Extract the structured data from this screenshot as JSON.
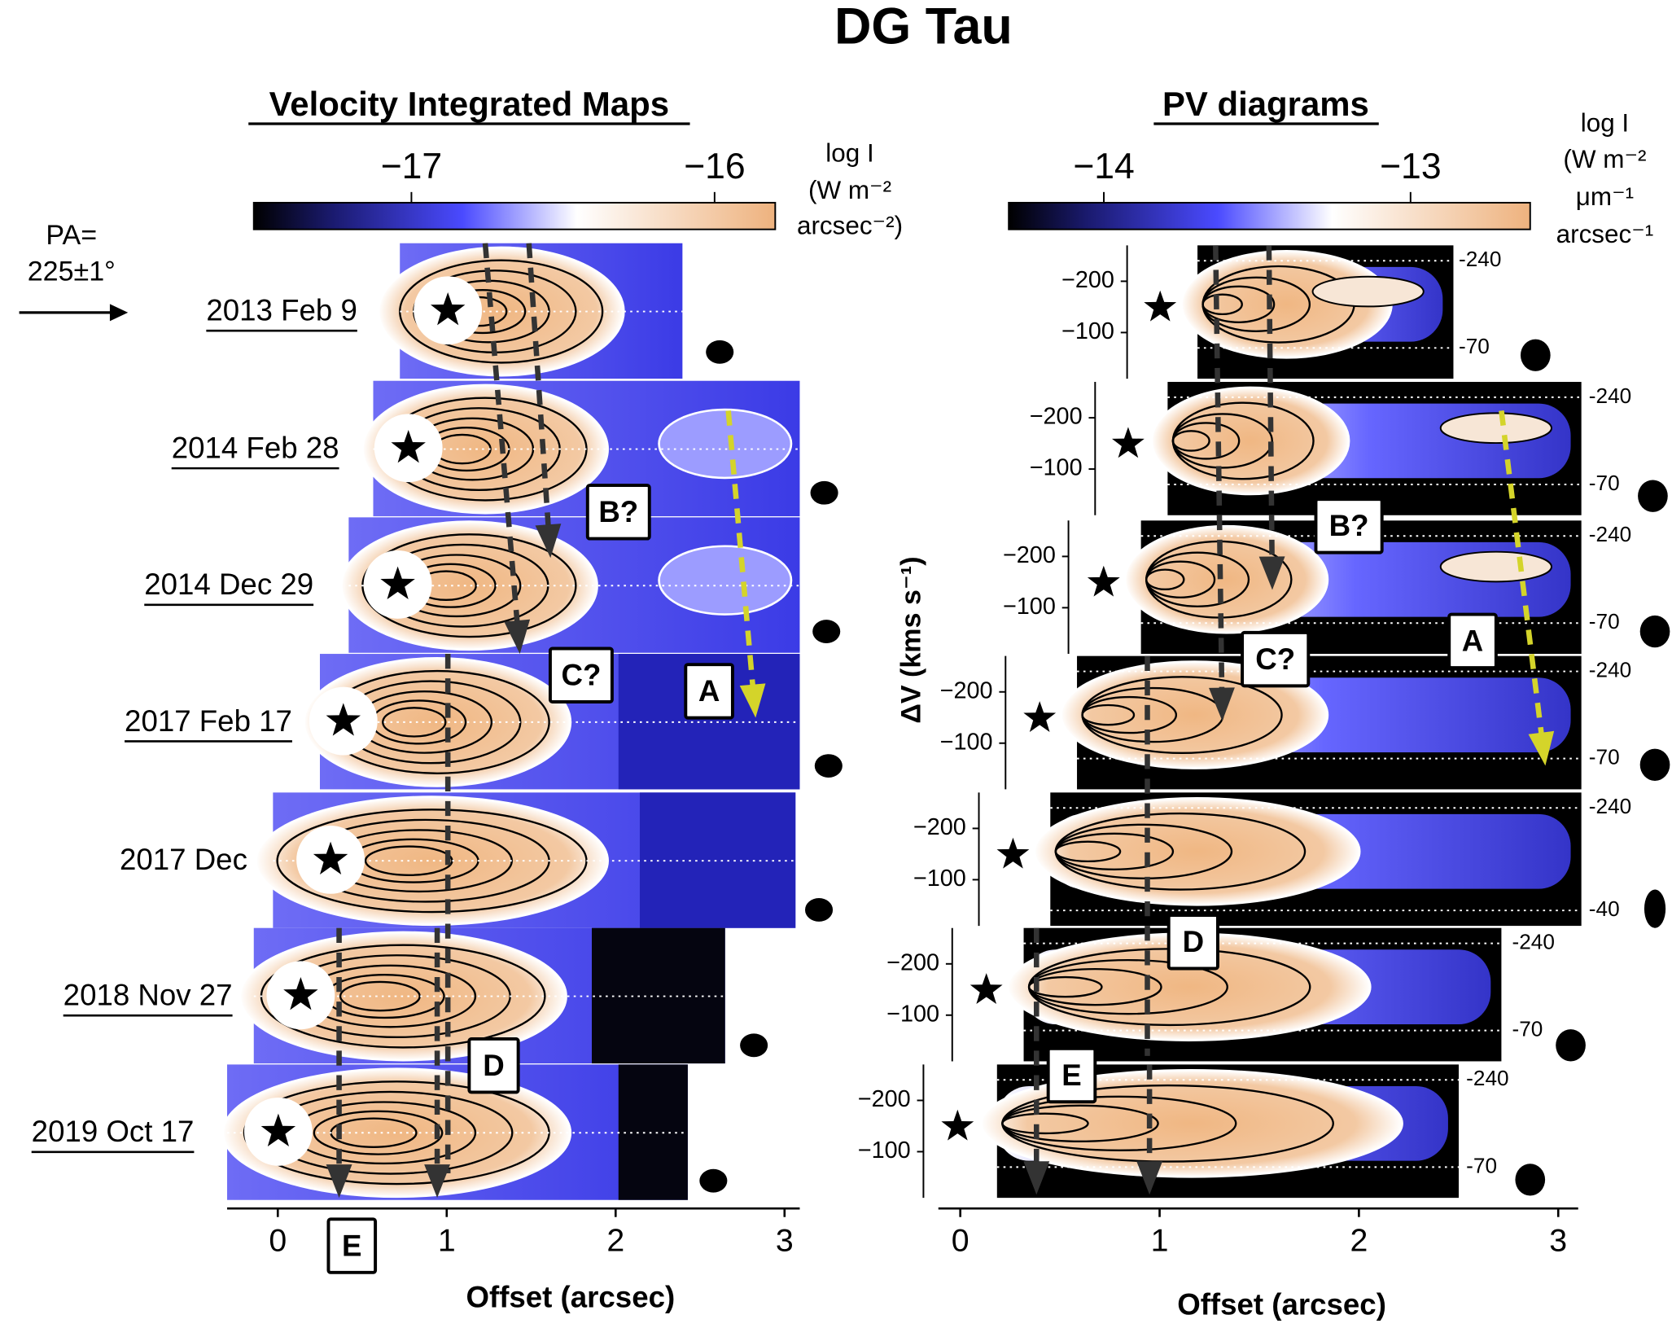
{
  "title": "DG Tau",
  "chart_data": [
    {
      "type": "map-stack",
      "title": "Velocity Integrated Maps",
      "xlabel": "Offset (arcsec)",
      "xlim": [
        -0.3,
        3.09
      ],
      "xticks": [
        0,
        1,
        2,
        3
      ],
      "colorbar": {
        "label": [
          "log I",
          "(W m⁻²",
          "arcsec⁻²)"
        ],
        "lim": [
          -17.52,
          -15.8
        ],
        "ticks": [
          {
            "value": -17,
            "label": "−17"
          },
          {
            "value": -16,
            "label": "−16"
          }
        ]
      },
      "annotations": [
        "PA=",
        "225±1°"
      ],
      "rows": [
        {
          "label": "2013 Feb 9",
          "underline": true
        },
        {
          "label": "2014 Feb 28",
          "underline": true
        },
        {
          "label": "2014 Dec 29",
          "underline": true
        },
        {
          "label": "2017 Feb 17",
          "underline": true
        },
        {
          "label": "2017 Dec",
          "underline": false
        },
        {
          "label": "2018 Nov 27",
          "underline": true
        },
        {
          "label": "2019 Oct 17",
          "underline": true
        }
      ],
      "markers": [
        "B?",
        "C?",
        "A",
        "D",
        "E"
      ]
    },
    {
      "type": "pv-stack",
      "title": "PV diagrams",
      "xlabel": "Offset (arcsec)",
      "ylabel": "ΔV (kms s⁻¹)",
      "xlim": [
        -0.11,
        3.1
      ],
      "xticks": [
        0,
        1,
        2,
        3
      ],
      "ylim": [
        -10,
        -270
      ],
      "yticks": [
        {
          "value": -200,
          "label": "−200"
        },
        {
          "value": -100,
          "label": "−100"
        }
      ],
      "colorbar": {
        "label": [
          "log I",
          "(W m⁻²",
          "μm⁻¹",
          "arcsec⁻¹"
        ],
        "lim": [
          -14.31,
          -12.61
        ],
        "ticks": [
          {
            "value": -14,
            "label": "−14"
          },
          {
            "value": -13,
            "label": "−13"
          }
        ]
      },
      "rows": [
        {
          "vrange": [
            -240,
            -70
          ]
        },
        {
          "vrange": [
            -240,
            -70
          ]
        },
        {
          "vrange": [
            -240,
            -70
          ]
        },
        {
          "vrange": [
            -240,
            -70
          ]
        },
        {
          "vrange": [
            -240,
            -40
          ]
        },
        {
          "vrange": [
            -240,
            -70
          ]
        },
        {
          "vrange": [
            -240,
            -70
          ]
        }
      ],
      "markers": [
        "B?",
        "C?",
        "A",
        "D",
        "E"
      ]
    }
  ]
}
